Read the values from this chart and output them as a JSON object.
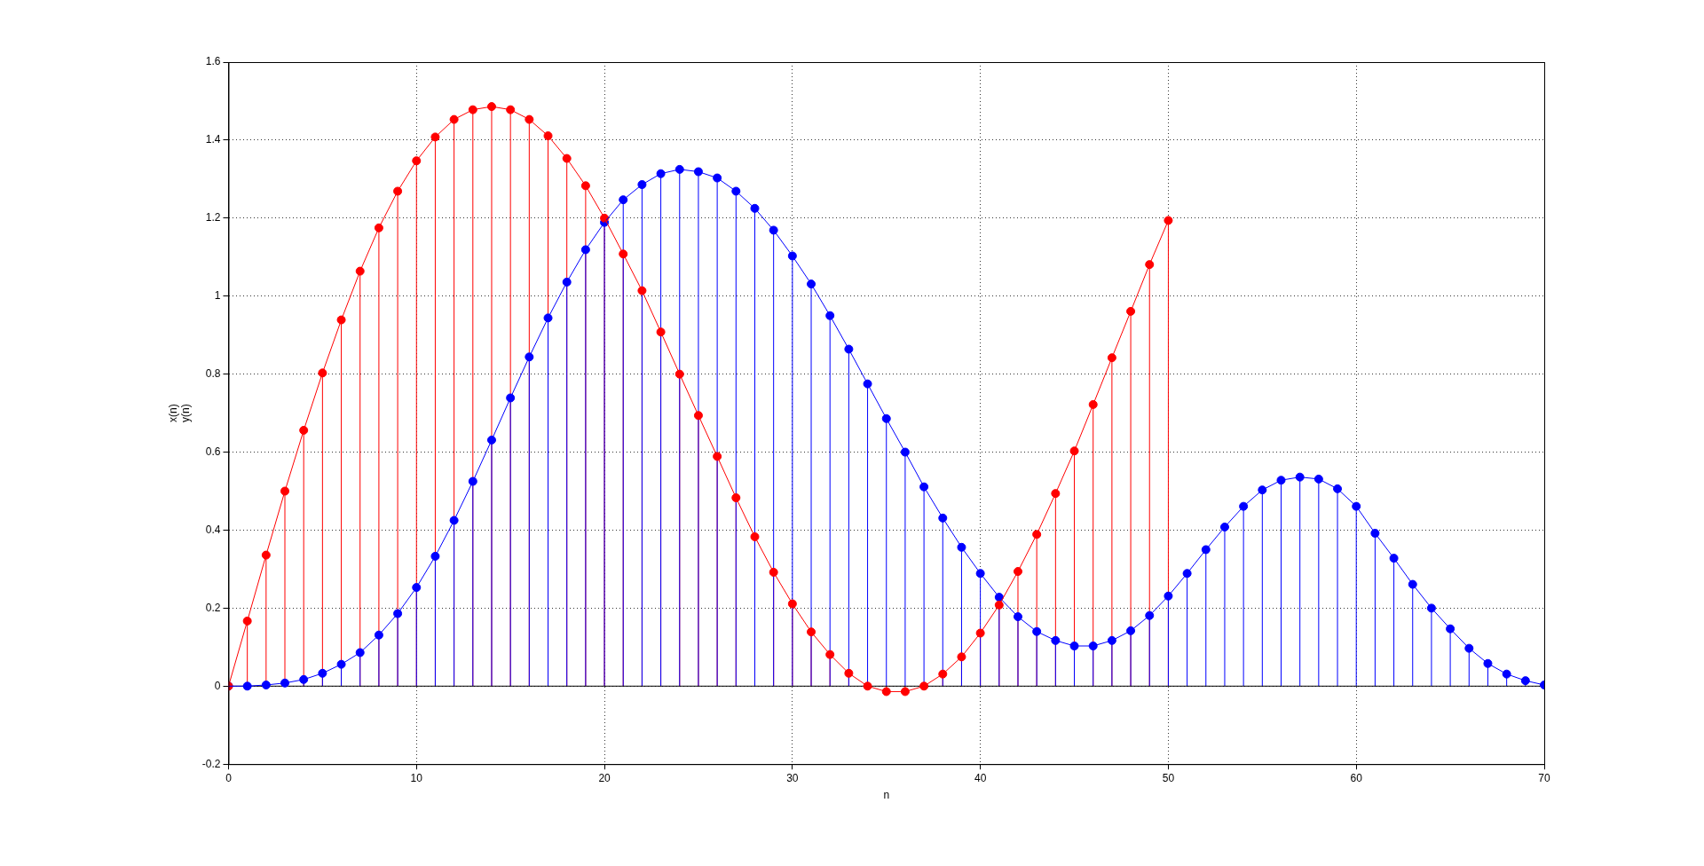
{
  "chart_data": {
    "type": "lollipop",
    "xlabel": "n",
    "ylabel": "x(n)\ny(n)",
    "xlim": [
      0,
      70
    ],
    "xticks": [
      0,
      10,
      20,
      30,
      40,
      50,
      60,
      70
    ],
    "ylim": [
      -0.2,
      1.6
    ],
    "yticks": [
      -0.2,
      0,
      0.2,
      0.4,
      0.6,
      0.8,
      1,
      1.2,
      1.4,
      1.6
    ],
    "grid": true,
    "marker": "circle",
    "line_style": "solid",
    "legend": false,
    "series": [
      {
        "type": "line",
        "marker": "none",
        "color": "#ff0000",
        "x": [
          0,
          1,
          2,
          3,
          4,
          5,
          6,
          7,
          8,
          9,
          10,
          11,
          12,
          13,
          14,
          15,
          16,
          17,
          18,
          19,
          20,
          21,
          22,
          23,
          24,
          25,
          26,
          27,
          28,
          29,
          30,
          31,
          32,
          33,
          34,
          35,
          36,
          37,
          38,
          39,
          40,
          41,
          42,
          43,
          44,
          45,
          46,
          47,
          48,
          49,
          50
        ],
        "values": [
          0,
          0.167,
          0.336,
          0.5,
          0.656,
          0.803,
          0.939,
          1.064,
          1.175,
          1.269,
          1.347,
          1.408,
          1.453,
          1.478,
          1.486,
          1.478,
          1.453,
          1.411,
          1.353,
          1.283,
          1.2,
          1.108,
          1.014,
          0.908,
          0.8,
          0.694,
          0.589,
          0.483,
          0.383,
          0.292,
          0.211,
          0.139,
          0.081,
          0.033,
          0,
          -0.014,
          -0.014,
          0,
          0.031,
          0.075,
          0.136,
          0.208,
          0.294,
          0.389,
          0.494,
          0.603,
          0.722,
          0.842,
          0.961,
          1.081,
          1.194
        ]
      },
      {
        "type": "line",
        "marker": "none",
        "color": "#0000ff",
        "x": [
          0,
          1,
          2,
          3,
          4,
          5,
          6,
          7,
          8,
          9,
          10,
          11,
          12,
          13,
          14,
          15,
          16,
          17,
          18,
          19,
          20,
          21,
          22,
          23,
          24,
          25,
          26,
          27,
          28,
          29,
          30,
          31,
          32,
          33,
          34,
          35,
          36,
          37,
          38,
          39,
          40,
          41,
          42,
          43,
          44,
          45,
          46,
          47,
          48,
          49,
          50,
          51,
          52,
          53,
          54,
          55,
          56,
          57,
          58,
          59,
          60,
          61,
          62,
          63,
          64,
          65,
          66,
          67,
          68,
          69,
          70
        ],
        "values": [
          0,
          0,
          0.003,
          0.008,
          0.017,
          0.033,
          0.056,
          0.086,
          0.131,
          0.186,
          0.253,
          0.333,
          0.425,
          0.525,
          0.631,
          0.739,
          0.844,
          0.944,
          1.036,
          1.119,
          1.189,
          1.247,
          1.286,
          1.314,
          1.325,
          1.319,
          1.303,
          1.269,
          1.225,
          1.169,
          1.103,
          1.031,
          0.95,
          0.864,
          0.775,
          0.686,
          0.6,
          0.511,
          0.431,
          0.356,
          0.289,
          0.228,
          0.178,
          0.14,
          0.117,
          0.103,
          0.103,
          0.117,
          0.142,
          0.181,
          0.231,
          0.289,
          0.35,
          0.408,
          0.461,
          0.503,
          0.528,
          0.536,
          0.531,
          0.506,
          0.461,
          0.392,
          0.328,
          0.261,
          0.2,
          0.147,
          0.097,
          0.058,
          0.031,
          0.014,
          0.003
        ]
      },
      {
        "color": "#ff0000",
        "x": [
          0,
          1,
          2,
          3,
          4,
          5,
          6,
          7,
          8,
          9,
          10,
          11,
          12,
          13,
          14,
          15,
          16,
          17,
          18,
          19,
          20,
          21,
          22,
          23,
          24,
          25,
          26,
          27,
          28,
          29,
          30,
          31,
          32,
          33,
          34,
          35,
          36,
          37,
          38,
          39,
          40,
          41,
          42,
          43,
          44,
          45,
          46,
          47,
          48,
          49,
          50
        ],
        "values": [
          0,
          0.167,
          0.336,
          0.5,
          0.656,
          0.803,
          0.939,
          1.064,
          1.175,
          1.269,
          1.347,
          1.408,
          1.453,
          1.478,
          1.486,
          1.478,
          1.453,
          1.411,
          1.353,
          1.283,
          1.2,
          1.108,
          1.014,
          0.908,
          0.8,
          0.694,
          0.589,
          0.483,
          0.383,
          0.292,
          0.211,
          0.139,
          0.081,
          0.033,
          0,
          -0.014,
          -0.014,
          0,
          0.031,
          0.075,
          0.136,
          0.208,
          0.294,
          0.389,
          0.494,
          0.603,
          0.722,
          0.842,
          0.961,
          1.081,
          1.194
        ]
      },
      {
        "color": "#0000ff",
        "x": [
          0,
          1,
          2,
          3,
          4,
          5,
          6,
          7,
          8,
          9,
          10,
          11,
          12,
          13,
          14,
          15,
          16,
          17,
          18,
          19,
          20,
          21,
          22,
          23,
          24,
          25,
          26,
          27,
          28,
          29,
          30,
          31,
          32,
          33,
          34,
          35,
          36,
          37,
          38,
          39,
          40,
          41,
          42,
          43,
          44,
          45,
          46,
          47,
          48,
          49,
          50,
          51,
          52,
          53,
          54,
          55,
          56,
          57,
          58,
          59,
          60,
          61,
          62,
          63,
          64,
          65,
          66,
          67,
          68,
          69,
          70
        ],
        "values": [
          0,
          0,
          0.003,
          0.008,
          0.017,
          0.033,
          0.056,
          0.086,
          0.131,
          0.186,
          0.253,
          0.333,
          0.425,
          0.525,
          0.631,
          0.739,
          0.844,
          0.944,
          1.036,
          1.119,
          1.189,
          1.247,
          1.286,
          1.314,
          1.325,
          1.319,
          1.303,
          1.269,
          1.225,
          1.169,
          1.103,
          1.031,
          0.95,
          0.864,
          0.775,
          0.686,
          0.6,
          0.511,
          0.431,
          0.356,
          0.289,
          0.228,
          0.178,
          0.14,
          0.117,
          0.103,
          0.103,
          0.117,
          0.142,
          0.181,
          0.231,
          0.289,
          0.35,
          0.408,
          0.461,
          0.503,
          0.528,
          0.536,
          0.531,
          0.506,
          0.461,
          0.392,
          0.328,
          0.261,
          0.2,
          0.147,
          0.097,
          0.058,
          0.031,
          0.014,
          0.003
        ]
      }
    ]
  }
}
